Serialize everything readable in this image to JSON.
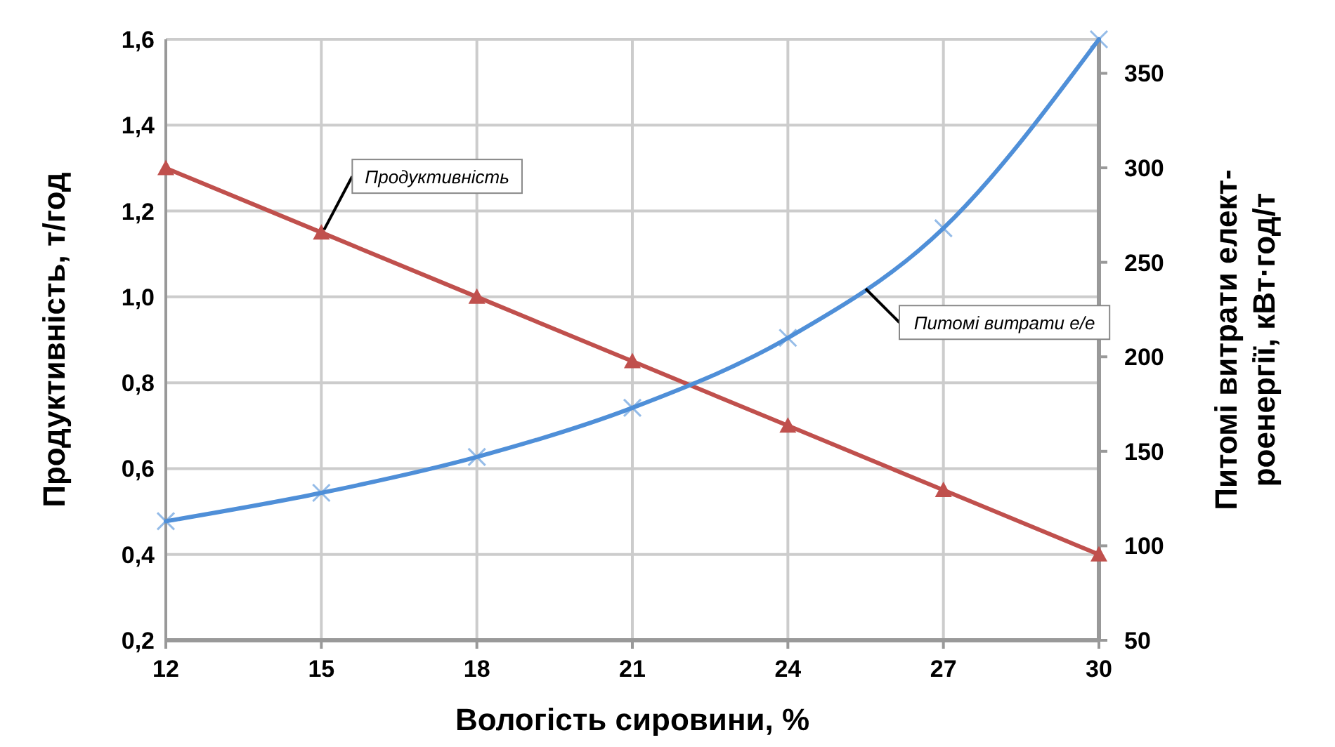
{
  "chart_data": {
    "type": "line",
    "xlabel": "Вологість сировини, %",
    "ylabel": "Продуктивність, т/год",
    "y2label": "Питомі витрати елект-\nроенергії, кВт·год/т",
    "x": [
      12,
      15,
      18,
      21,
      24,
      27,
      30
    ],
    "series": [
      {
        "name": "Продуктивність",
        "color": "#c0504d",
        "marker": "triangle",
        "values": [
          1.3,
          1.15,
          1.0,
          0.85,
          0.7,
          0.55,
          0.4
        ]
      },
      {
        "name": "Питомі витрати е/е",
        "color": "#4f8fd8",
        "marker": "cross",
        "axis": "y2",
        "values": [
          113,
          128,
          147,
          173,
          210,
          268,
          368
        ]
      }
    ],
    "xlim": [
      12,
      30
    ],
    "xticks": [
      12,
      15,
      18,
      21,
      24,
      27,
      30
    ],
    "ylim": [
      0.2,
      1.6
    ],
    "yticks": [
      {
        "value": 0.2,
        "label": "0,2"
      },
      {
        "value": 0.4,
        "label": "0,4"
      },
      {
        "value": 0.6,
        "label": "0,6"
      },
      {
        "value": 0.8,
        "label": "0,8"
      },
      {
        "value": 1.0,
        "label": "1,0"
      },
      {
        "value": 1.2,
        "label": "1,2"
      },
      {
        "value": 1.4,
        "label": "1,4"
      },
      {
        "value": 1.6,
        "label": "1,6"
      }
    ],
    "y2lim": [
      50,
      368
    ],
    "y2ticks": [
      50,
      100,
      150,
      200,
      250,
      300,
      350
    ],
    "grid": true,
    "line_style": "solid"
  }
}
